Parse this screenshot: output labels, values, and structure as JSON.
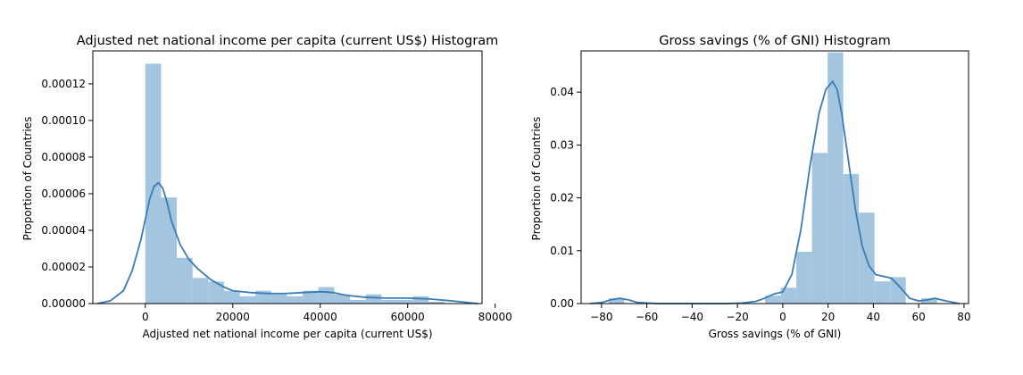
{
  "chart_data": [
    {
      "type": "histogram",
      "title": "Adjusted net national income per capita (current US$) Histogram",
      "xlabel": "Adjusted net national income per capita (current US$)",
      "ylabel": "Proportion of Countries",
      "xlim": [
        -12000,
        77000
      ],
      "ylim": [
        0,
        0.000138
      ],
      "xticks": [
        0,
        20000,
        40000,
        60000,
        80000
      ],
      "xtick_labels": [
        "0",
        "20000",
        "40000",
        "60000",
        "80000"
      ],
      "yticks": [
        0,
        2e-05,
        4e-05,
        6e-05,
        8e-05,
        0.0001,
        0.00012
      ],
      "ytick_labels": [
        "0.00000",
        "0.00002",
        "0.00004",
        "0.00006",
        "0.00008",
        "0.00010",
        "0.00012"
      ],
      "bin_width": 3600,
      "bins_start": [
        0,
        3600,
        7200,
        10800,
        14400,
        18000,
        21600,
        25200,
        28800,
        32400,
        36000,
        39600,
        43200,
        46800,
        50400,
        54000,
        57600,
        61200,
        64800,
        68400
      ],
      "values": [
        0.000131,
        5.8e-05,
        2.5e-05,
        1.4e-05,
        1.2e-05,
        7e-06,
        4e-06,
        7e-06,
        5e-06,
        4e-06,
        7e-06,
        9e-06,
        5e-06,
        2e-06,
        5e-06,
        2e-06,
        2e-06,
        4e-06,
        1e-06,
        0.0
      ],
      "kde": {
        "x": [
          -11000,
          -8000,
          -5000,
          -3000,
          -1000,
          0,
          1000,
          2000,
          3000,
          4000,
          5000,
          6000,
          8000,
          10000,
          12000,
          15000,
          18000,
          20000,
          24000,
          28000,
          32000,
          36000,
          40000,
          43000,
          46000,
          50000,
          55000,
          60000,
          65000,
          70000,
          74000,
          76000
        ],
        "y": [
          0.0,
          1.5e-06,
          7e-06,
          1.8e-05,
          3.5e-05,
          4.6e-05,
          5.7e-05,
          6.4e-05,
          6.6e-05,
          6.3e-05,
          5.5e-05,
          4.5e-05,
          3.2e-05,
          2.4e-05,
          1.9e-05,
          1.3e-05,
          9e-06,
          7e-06,
          6e-06,
          5.5e-06,
          5.5e-06,
          6e-06,
          6.5e-06,
          6e-06,
          4.5e-06,
          3.5e-06,
          3e-06,
          3e-06,
          2.5e-06,
          1.5e-06,
          5e-07,
          0.0
        ]
      }
    },
    {
      "type": "histogram",
      "title": "Gross savings (% of GNI) Histogram",
      "xlabel": "Gross savings (% of GNI)",
      "ylabel": "Proportion of Countries",
      "xlim": [
        -89,
        82
      ],
      "ylim": [
        0,
        0.0478
      ],
      "xticks": [
        -80,
        -60,
        -40,
        -20,
        0,
        20,
        40,
        60,
        80
      ],
      "xtick_labels": [
        "−80",
        "−60",
        "−40",
        "−20",
        "0",
        "20",
        "40",
        "60",
        "80"
      ],
      "yticks": [
        0,
        0.01,
        0.02,
        0.03,
        0.04
      ],
      "ytick_labels": [
        "0.00",
        "0.01",
        "0.02",
        "0.03",
        "0.04"
      ],
      "bin_width": 6.9,
      "bins_start": [
        -76.8,
        -69.9,
        -63.0,
        -56.1,
        -49.2,
        -42.3,
        -35.4,
        -28.5,
        -21.6,
        -14.7,
        -7.8,
        -0.9,
        6.0,
        12.9,
        19.8,
        26.7,
        33.6,
        40.5,
        47.4,
        54.3,
        61.2
      ],
      "values": [
        0.001,
        0.0,
        0.0,
        0.0,
        0.0,
        0.0,
        0.0,
        0.0,
        0.0,
        0.0,
        0.0015,
        0.003,
        0.0098,
        0.0285,
        0.0475,
        0.0245,
        0.0172,
        0.0042,
        0.005,
        0.0,
        0.001
      ],
      "kde": {
        "x": [
          -85,
          -80,
          -76,
          -72,
          -68,
          -64,
          -55,
          -45,
          -35,
          -25,
          -18,
          -12,
          -8,
          -4,
          0,
          4,
          8,
          12,
          16,
          19,
          22,
          24,
          26,
          29,
          32,
          35,
          38,
          41,
          44,
          48,
          52,
          56,
          60,
          64,
          67,
          72,
          78
        ],
        "y": [
          0.0,
          0.0002,
          0.0007,
          0.001,
          0.0007,
          0.0002,
          0.0,
          0.0,
          0.0,
          0.0,
          0.0001,
          0.0004,
          0.001,
          0.0018,
          0.0022,
          0.0055,
          0.014,
          0.026,
          0.036,
          0.0405,
          0.042,
          0.0405,
          0.036,
          0.027,
          0.018,
          0.011,
          0.0072,
          0.0055,
          0.0052,
          0.0048,
          0.003,
          0.001,
          0.0005,
          0.0007,
          0.001,
          0.0005,
          0.0
        ]
      }
    }
  ]
}
